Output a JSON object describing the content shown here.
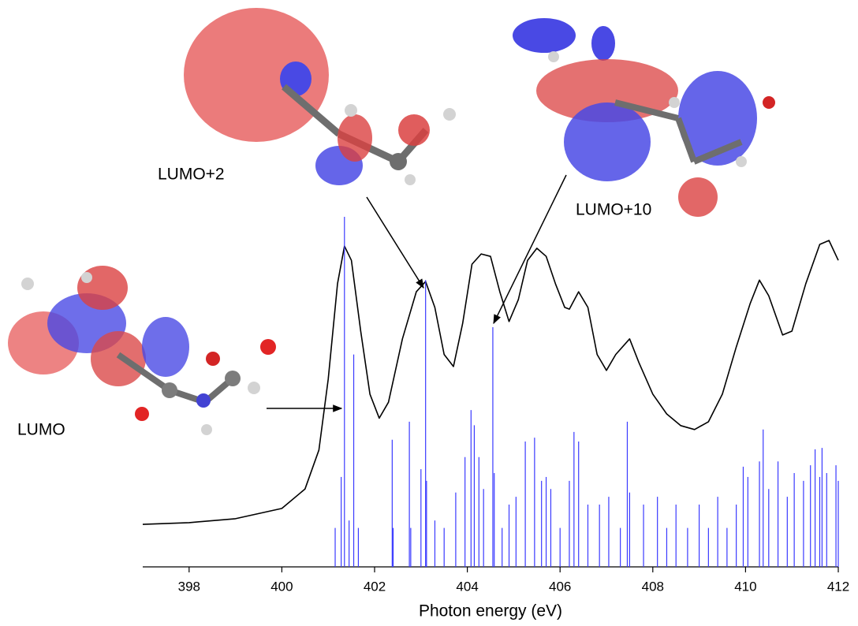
{
  "chart_data": {
    "type": "line",
    "xlabel": "Photon energy (eV)",
    "xlim": [
      397,
      412
    ],
    "ylim": [
      0,
      1
    ],
    "xticks": [
      398,
      400,
      402,
      404,
      406,
      408,
      410,
      412
    ],
    "annotations": [
      "LUMO",
      "LUMO+2",
      "LUMO+10"
    ],
    "series": [
      {
        "type": "line",
        "color": "#000000",
        "x": [
          397,
          398,
          399,
          400,
          400.5,
          400.8,
          401.0,
          401.2,
          401.35,
          401.5,
          401.7,
          401.9,
          402.1,
          402.3,
          402.6,
          402.9,
          403.1,
          403.3,
          403.5,
          403.7,
          403.9,
          404.1,
          404.3,
          404.5,
          404.7,
          404.9,
          405.1,
          405.3,
          405.5,
          405.7,
          405.9,
          406.1,
          406.2,
          406.4,
          406.6,
          406.8,
          407.0,
          407.2,
          407.5,
          407.7,
          408.0,
          408.3,
          408.6,
          408.9,
          409.2,
          409.5,
          409.8,
          410.1,
          410.3,
          410.5,
          410.8,
          411.0,
          411.3,
          411.6,
          411.8,
          412.0
        ],
        "values": [
          0.12,
          0.125,
          0.136,
          0.165,
          0.22,
          0.33,
          0.53,
          0.8,
          0.906,
          0.866,
          0.666,
          0.488,
          0.42,
          0.465,
          0.644,
          0.777,
          0.806,
          0.733,
          0.6,
          0.566,
          0.688,
          0.855,
          0.884,
          0.877,
          0.777,
          0.693,
          0.755,
          0.866,
          0.9,
          0.877,
          0.8,
          0.733,
          0.728,
          0.777,
          0.733,
          0.6,
          0.555,
          0.6,
          0.644,
          0.577,
          0.488,
          0.432,
          0.399,
          0.388,
          0.41,
          0.488,
          0.621,
          0.744,
          0.81,
          0.766,
          0.655,
          0.666,
          0.8,
          0.911,
          0.922,
          0.866
        ]
      },
      {
        "type": "stick",
        "color": "#3a3aff",
        "x": [
          401.15,
          401.28,
          401.35,
          401.45,
          401.55,
          401.65,
          402.38,
          402.4,
          402.75,
          402.78,
          403.0,
          403.1,
          403.12,
          403.3,
          403.5,
          403.75,
          403.95,
          404.08,
          404.15,
          404.25,
          404.35,
          404.55,
          404.58,
          404.75,
          404.9,
          405.05,
          405.25,
          405.45,
          405.6,
          405.7,
          405.8,
          406.0,
          406.2,
          406.3,
          406.4,
          406.6,
          406.85,
          407.05,
          407.3,
          407.45,
          407.5,
          407.8,
          408.1,
          408.3,
          408.5,
          408.75,
          409.0,
          409.2,
          409.4,
          409.6,
          409.8,
          409.95,
          410.05,
          410.3,
          410.38,
          410.5,
          410.7,
          410.9,
          411.05,
          411.25,
          411.4,
          411.5,
          411.6,
          411.65,
          411.75,
          411.95,
          412.0
        ],
        "values": [
          0.11,
          0.254,
          0.989,
          0.131,
          0.6,
          0.11,
          0.359,
          0.11,
          0.41,
          0.11,
          0.276,
          0.81,
          0.243,
          0.131,
          0.11,
          0.21,
          0.31,
          0.443,
          0.4,
          0.31,
          0.22,
          0.677,
          0.265,
          0.11,
          0.176,
          0.198,
          0.354,
          0.365,
          0.243,
          0.254,
          0.22,
          0.11,
          0.243,
          0.381,
          0.354,
          0.176,
          0.176,
          0.198,
          0.11,
          0.41,
          0.21,
          0.176,
          0.198,
          0.11,
          0.176,
          0.11,
          0.176,
          0.11,
          0.198,
          0.11,
          0.176,
          0.283,
          0.254,
          0.298,
          0.388,
          0.22,
          0.298,
          0.198,
          0.265,
          0.243,
          0.287,
          0.332,
          0.254,
          0.336,
          0.265,
          0.287,
          0.243
        ]
      }
    ]
  }
}
